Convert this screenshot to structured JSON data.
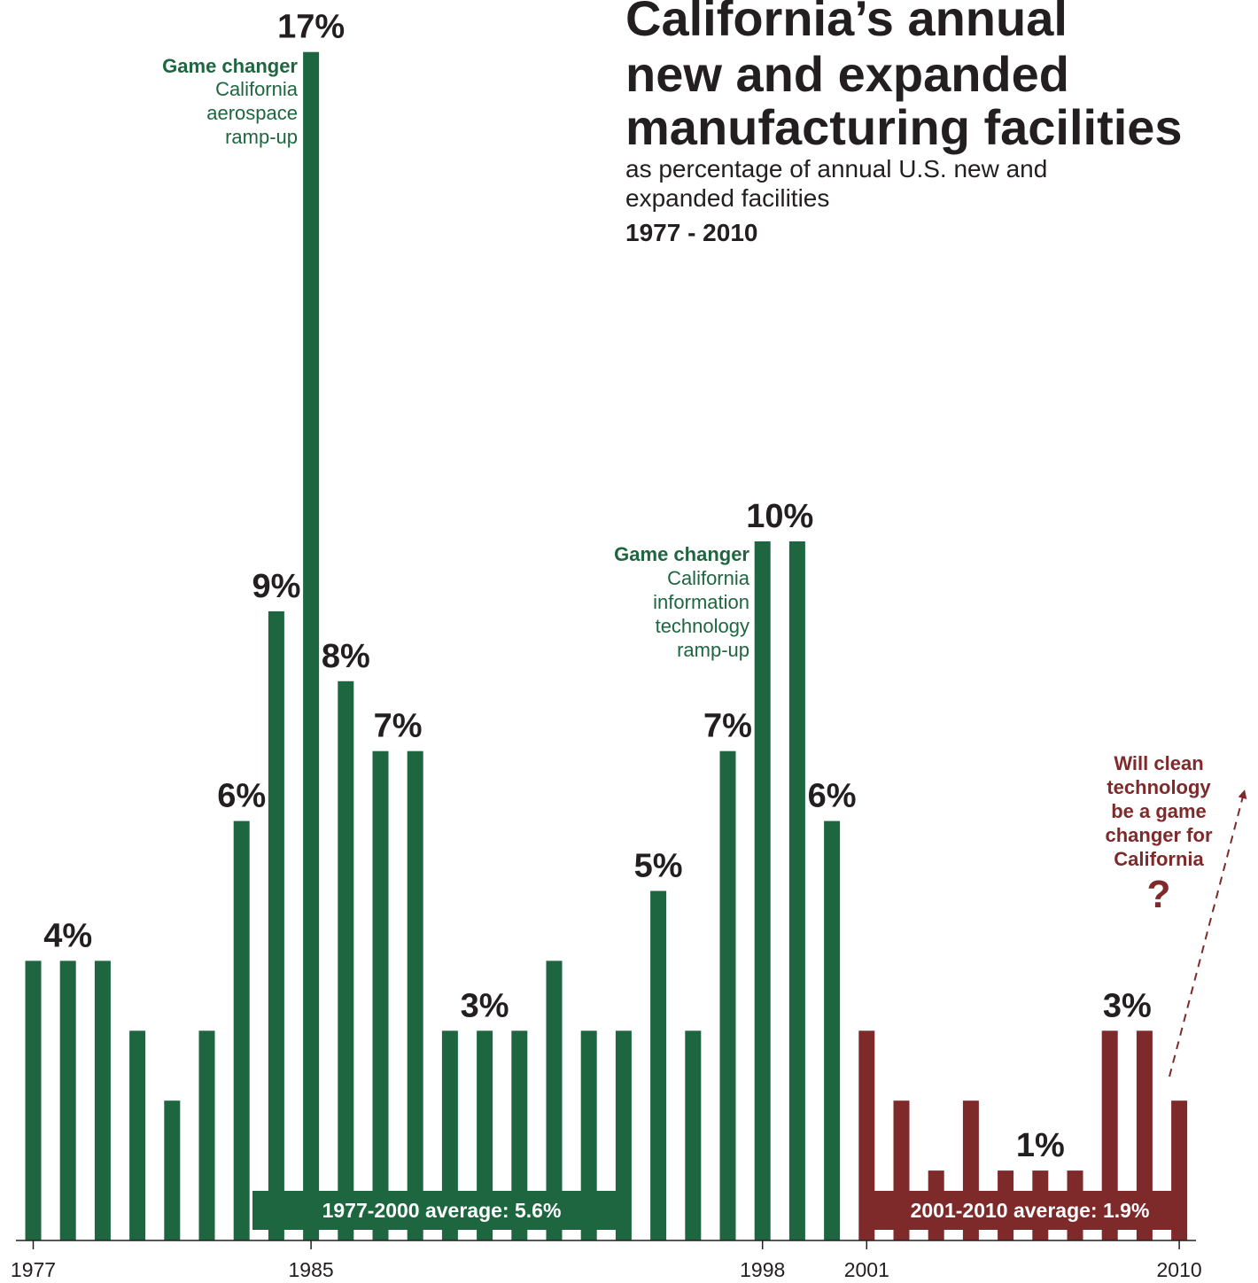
{
  "colors": {
    "early": "#1e6640",
    "recent": "#7e2a2b",
    "text": "#231f20",
    "axis": "#231f20"
  },
  "chart_data": {
    "type": "bar",
    "title": "California’s annual new and expanded manufacturing facilities",
    "title_lines": [
      "California’s annual",
      "new and expanded",
      "manufacturing facilities"
    ],
    "subtitle_lines": [
      "as percentage of annual U.S. new and",
      "expanded facilities"
    ],
    "period": "1977 - 2010",
    "categories": [
      1977,
      1978,
      1979,
      1980,
      1981,
      1982,
      1983,
      1984,
      1985,
      1986,
      1987,
      1988,
      1989,
      1990,
      1991,
      1992,
      1993,
      1994,
      1995,
      1996,
      1997,
      1998,
      1999,
      2000,
      2001,
      2002,
      2003,
      2004,
      2005,
      2006,
      2007,
      2008,
      2009,
      2010
    ],
    "values": [
      4,
      4,
      4,
      3,
      2,
      3,
      6,
      9,
      17,
      8,
      7,
      7,
      3,
      3,
      3,
      4,
      3,
      3,
      5,
      3,
      7,
      10,
      10,
      6,
      3,
      2,
      1,
      2,
      1,
      1,
      1,
      3,
      3,
      2
    ],
    "xticks": [
      1977,
      1985,
      1998,
      2001,
      2010
    ],
    "ylim": [
      0,
      17.5
    ],
    "grid": false,
    "data_labels": [
      {
        "year": 1978,
        "text": "4%"
      },
      {
        "year": 1983,
        "text": "6%"
      },
      {
        "year": 1984,
        "text": "9%"
      },
      {
        "year": 1985,
        "text": "17%"
      },
      {
        "year": 1986,
        "text": "8%"
      },
      {
        "year": 1987.5,
        "text": "7%"
      },
      {
        "year": 1990,
        "text": "3%"
      },
      {
        "year": 1995,
        "text": "5%"
      },
      {
        "year": 1997,
        "text": "7%"
      },
      {
        "year": 1998.5,
        "text": "10%"
      },
      {
        "year": 2000,
        "text": "6%"
      },
      {
        "year": 2006,
        "text": "1%"
      },
      {
        "year": 2008.5,
        "text": "3%"
      }
    ],
    "averages": [
      {
        "label": "1977-2000 average: 5.6%",
        "value": 5.6,
        "from": 1977,
        "to": 2000
      },
      {
        "label": "2001-2010 average: 1.9%",
        "value": 1.9,
        "from": 2001,
        "to": 2010
      }
    ],
    "annotations": [
      {
        "title": "Game changer",
        "lines": [
          "California",
          "aerospace",
          "ramp-up"
        ]
      },
      {
        "title": "Game changer",
        "lines": [
          "California",
          "information",
          "technology",
          "ramp-up"
        ]
      },
      {
        "lines": [
          "Will clean",
          "technology",
          "be a game",
          "changer for",
          "California"
        ],
        "mark": "?"
      }
    ]
  }
}
